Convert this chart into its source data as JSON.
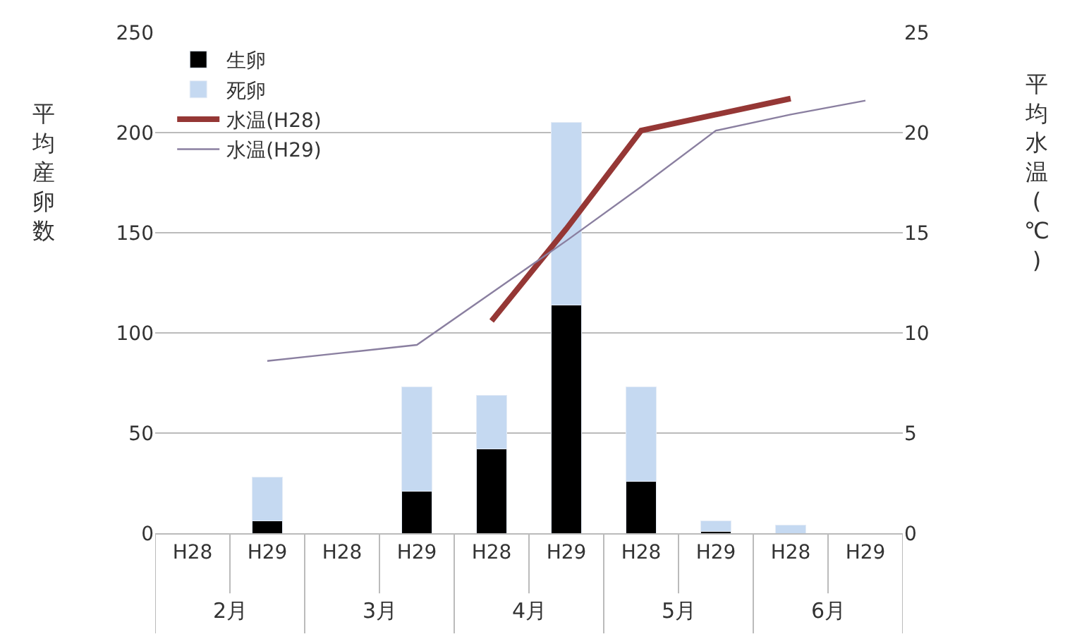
{
  "chart_data": {
    "type": "bar",
    "stacked": true,
    "categories": [
      "H28",
      "H29",
      "H28",
      "H29",
      "H28",
      "H29",
      "H28",
      "H29",
      "H28",
      "H29"
    ],
    "annotations": [
      "2月",
      "3月",
      "4月",
      "5月",
      "6月"
    ],
    "ylabel": "平均産卵数",
    "y2label": "平均水温(℃)",
    "series": [
      {
        "name": "生卵",
        "color": "#000000",
        "values": [
          null,
          6,
          null,
          21,
          42,
          114,
          26,
          1,
          0,
          null
        ]
      },
      {
        "name": "死卵",
        "color": "#c5d9f1",
        "values": [
          null,
          22,
          null,
          52,
          27,
          91,
          47,
          5,
          4,
          null
        ]
      },
      {
        "name": "水温(H28)",
        "type": "line",
        "axis": "y2",
        "color": "#953735",
        "values": [
          null,
          null,
          null,
          null,
          10.6,
          15.2,
          20.1,
          20.9,
          21.7,
          null
        ]
      },
      {
        "name": "水温(H29)",
        "type": "line",
        "axis": "y2",
        "color": "#8a7fa0",
        "values": [
          null,
          8.6,
          9.0,
          9.4,
          12.0,
          14.6,
          17.3,
          20.1,
          20.9,
          21.6
        ]
      }
    ],
    "ylim": [
      0,
      250
    ],
    "yticks": [
      0,
      50,
      100,
      150,
      200,
      250
    ],
    "y2lim": [
      0,
      25
    ],
    "y2ticks": [
      0,
      5,
      10,
      15,
      20,
      25
    ],
    "grid": "y",
    "legend": "top left"
  }
}
